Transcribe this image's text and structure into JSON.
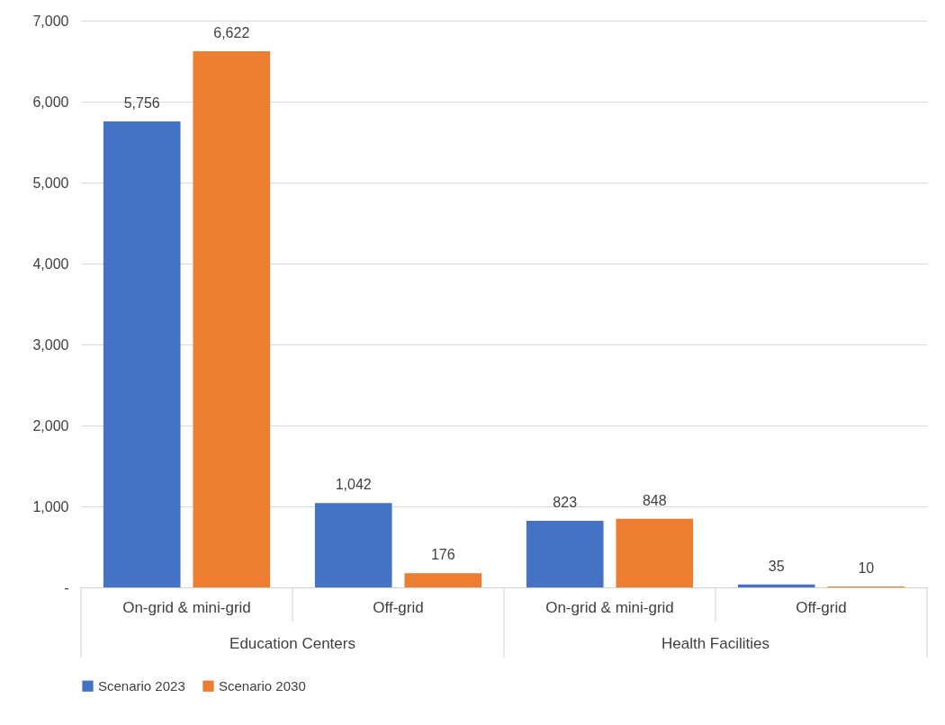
{
  "chart_data": {
    "type": "bar",
    "categories": [
      "On-grid & mini-grid",
      "Off-grid",
      "On-grid & mini-grid",
      "Off-grid"
    ],
    "series": [
      {
        "name": "Scenario 2023",
        "color": "#4472c4",
        "values": [
          5756,
          1042,
          823,
          35
        ],
        "value_labels": [
          "5,756",
          "1,042",
          "823",
          "35"
        ]
      },
      {
        "name": "Scenario 2030",
        "color": "#ed7d31",
        "values": [
          6622,
          176,
          848,
          10
        ],
        "value_labels": [
          "6,622",
          "176",
          "848",
          "10"
        ]
      }
    ],
    "annotations": [
      "Education Centers",
      "Health Facilities"
    ],
    "ylim": [
      0,
      7000
    ],
    "yticks": [
      {
        "value": 0,
        "label": "-"
      },
      {
        "value": 1000,
        "label": "1,000"
      },
      {
        "value": 2000,
        "label": "2,000"
      },
      {
        "value": 3000,
        "label": "3,000"
      },
      {
        "value": 4000,
        "label": "4,000"
      },
      {
        "value": 5000,
        "label": "5,000"
      },
      {
        "value": 6000,
        "label": "6,000"
      },
      {
        "value": 7000,
        "label": "7,000"
      }
    ],
    "grid": "y",
    "legend": "bottom"
  }
}
